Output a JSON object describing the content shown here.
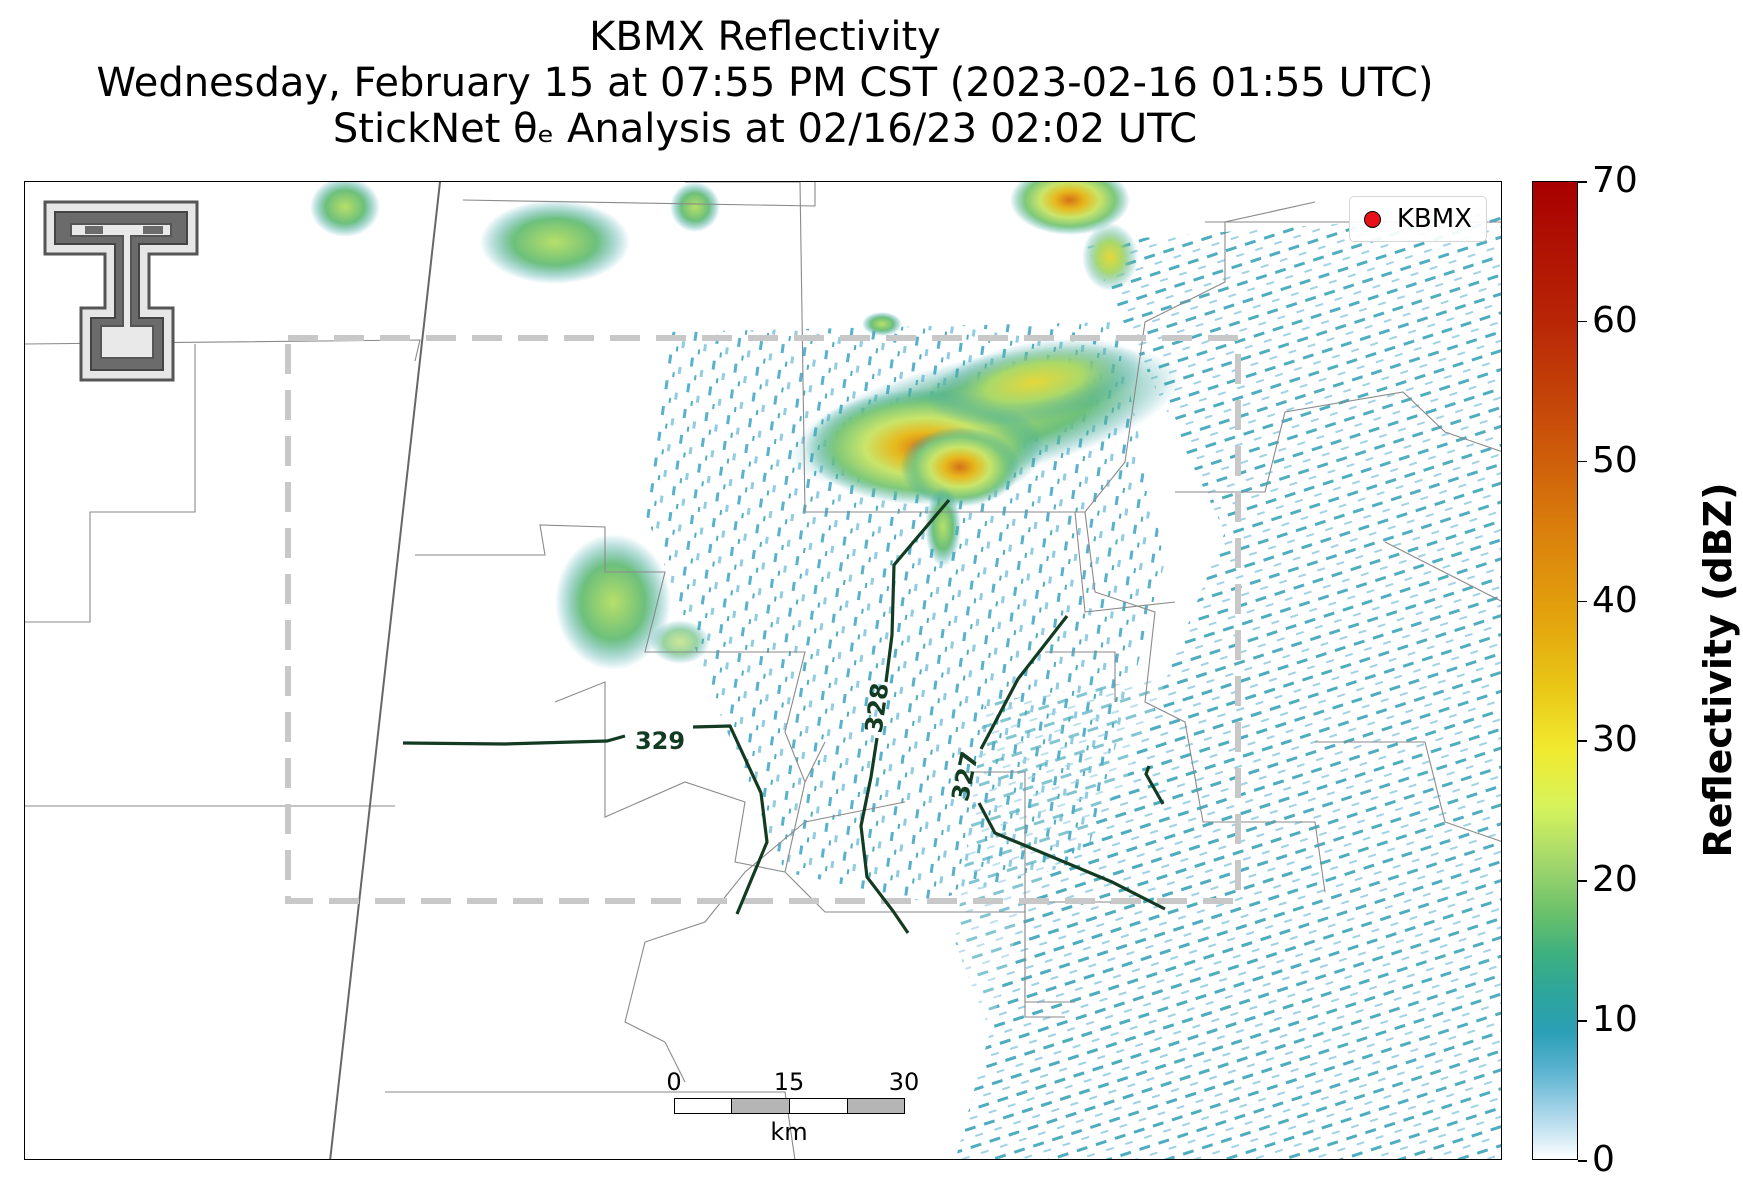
{
  "title": {
    "line1": "KBMX Reflectivity",
    "line2": "Wednesday, February 15 at 07:55 PM CST (2023-02-16 01:55 UTC)",
    "line3": "StickNet θₑ Analysis at 02/16/23 02:02 UTC"
  },
  "legend": {
    "label": "KBMX",
    "marker_color": "#e8111a"
  },
  "contours": [
    {
      "label": "329"
    },
    {
      "label": "328"
    },
    {
      "label": "327"
    }
  ],
  "scalebar": {
    "ticks": [
      "0",
      "15",
      "30"
    ],
    "unit": "km"
  },
  "colorbar": {
    "title": "Reflectivity (dBZ)",
    "min": 0,
    "max": 70,
    "ticks": [
      "0",
      "10",
      "20",
      "30",
      "40",
      "50",
      "60",
      "70"
    ]
  },
  "colors": {
    "contour": "#123b22",
    "analysis_box": "#c8c8c8",
    "county_lines": "#8a8a8a",
    "state_line": "#666666"
  },
  "icons": {
    "logo": "texas-tech-double-t-logo-icon"
  }
}
